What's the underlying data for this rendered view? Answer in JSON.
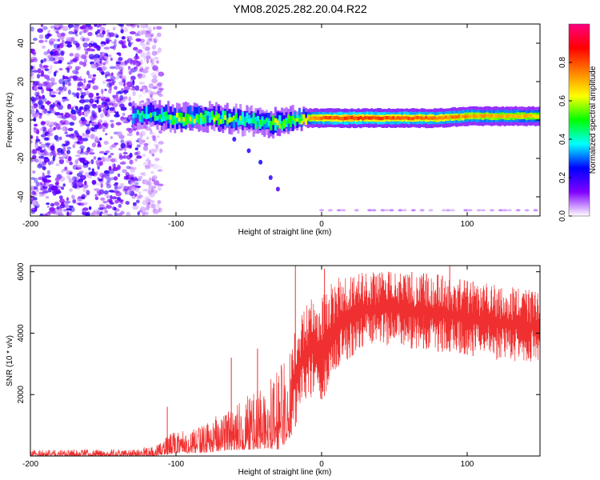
{
  "figure_title": "YM08.2025.282.20.04.R22",
  "chart_data": [
    {
      "type": "heatmap",
      "title": "YM08.2025.282.20.04.R22",
      "xlabel": "Height of straight line (km)",
      "ylabel": "Frequency (Hz)",
      "xlim": [
        -200,
        150
      ],
      "ylim": [
        -50,
        50
      ],
      "xticks": [
        -200,
        -100,
        0,
        100
      ],
      "xtick_labels": [
        "-200",
        "-100",
        "0",
        "100"
      ],
      "yticks": [
        -40,
        -20,
        0,
        20,
        40
      ],
      "ytick_labels": [
        "-40",
        "-20",
        "0",
        "20",
        "40"
      ],
      "colorbar": {
        "label": "Normalized spectral amplitude",
        "range": [
          0.0,
          1.0
        ],
        "ticks": [
          0.0,
          0.2,
          0.4,
          0.6,
          0.8
        ],
        "tick_labels": [
          "0.0",
          "0.2",
          "0.4",
          "0.6",
          "0.8"
        ],
        "colormap": [
          "#ffffff",
          "#8000ff",
          "#0000ff",
          "#00ffff",
          "#00ff00",
          "#ffff00",
          "#ff8000",
          "#ff0000",
          "#ff0080"
        ]
      },
      "ridge": {
        "description": "Dominant frequency track vs height",
        "x": [
          -130,
          -120,
          -110,
          -100,
          -90,
          -80,
          -70,
          -60,
          -50,
          -40,
          -30,
          -20,
          -10,
          0,
          20,
          40,
          60,
          80,
          100,
          120,
          150
        ],
        "y": [
          2,
          3,
          2,
          1,
          1,
          2,
          1,
          0,
          0,
          -1,
          -2,
          0,
          1,
          1,
          1,
          1,
          1,
          1,
          2,
          2,
          2
        ],
        "amplitude": [
          0.35,
          0.45,
          0.5,
          0.55,
          0.6,
          0.5,
          0.55,
          0.5,
          0.45,
          0.5,
          0.55,
          0.6,
          0.7,
          0.8,
          0.85,
          0.82,
          0.8,
          0.78,
          0.75,
          0.72,
          0.7
        ]
      },
      "branch": {
        "description": "Descending secondary trace",
        "x": [
          -70,
          -60,
          -50,
          -42,
          -35,
          -30
        ],
        "y": [
          -5,
          -10,
          -16,
          -22,
          -30,
          -36
        ]
      },
      "noise_region": {
        "x_range": [
          -200,
          -110
        ],
        "y_range": [
          -50,
          50
        ],
        "amplitude": 0.25
      }
    },
    {
      "type": "line",
      "title": "",
      "xlabel": "Height of straight line (km)",
      "ylabel": "SNR (10 * v/v)",
      "color": "#f03030",
      "xlim": [
        -200,
        150
      ],
      "ylim": [
        0,
        6200
      ],
      "xticks": [
        -200,
        -100,
        0,
        100
      ],
      "xtick_labels": [
        "-200",
        "-100",
        "0",
        "100"
      ],
      "yticks": [
        2000,
        4000,
        6000
      ],
      "ytick_labels": [
        "2000",
        "4000",
        "6000"
      ],
      "envelope": {
        "x": [
          -200,
          -150,
          -125,
          -115,
          -105,
          -100,
          -90,
          -80,
          -70,
          -60,
          -50,
          -40,
          -30,
          -25,
          -20,
          -15,
          -10,
          -5,
          0,
          5,
          10,
          20,
          30,
          40,
          50,
          60,
          70,
          80,
          90,
          100,
          110,
          120,
          130,
          140,
          150
        ],
        "low": [
          0,
          0,
          0,
          0,
          50,
          100,
          100,
          100,
          150,
          200,
          200,
          250,
          200,
          400,
          600,
          1500,
          1800,
          2000,
          1800,
          2200,
          2800,
          3200,
          3500,
          3600,
          3600,
          3500,
          3500,
          3400,
          3400,
          3300,
          3200,
          3100,
          3100,
          3000,
          3000
        ],
        "high": [
          200,
          220,
          250,
          350,
          700,
          800,
          900,
          1000,
          1400,
          1600,
          2000,
          2300,
          2800,
          3300,
          3900,
          4500,
          5000,
          5300,
          5200,
          5500,
          5800,
          5950,
          6000,
          6050,
          6000,
          6000,
          5950,
          5900,
          5800,
          5700,
          5650,
          5600,
          5500,
          5450,
          5400
        ]
      },
      "spikes": [
        {
          "x": -106,
          "y": 1600
        },
        {
          "x": -62,
          "y": 3200
        },
        {
          "x": -44,
          "y": 3500
        },
        {
          "x": -18,
          "y": 6200
        },
        {
          "x": 2,
          "y": 6100
        },
        {
          "x": 88,
          "y": 6200
        }
      ]
    }
  ]
}
